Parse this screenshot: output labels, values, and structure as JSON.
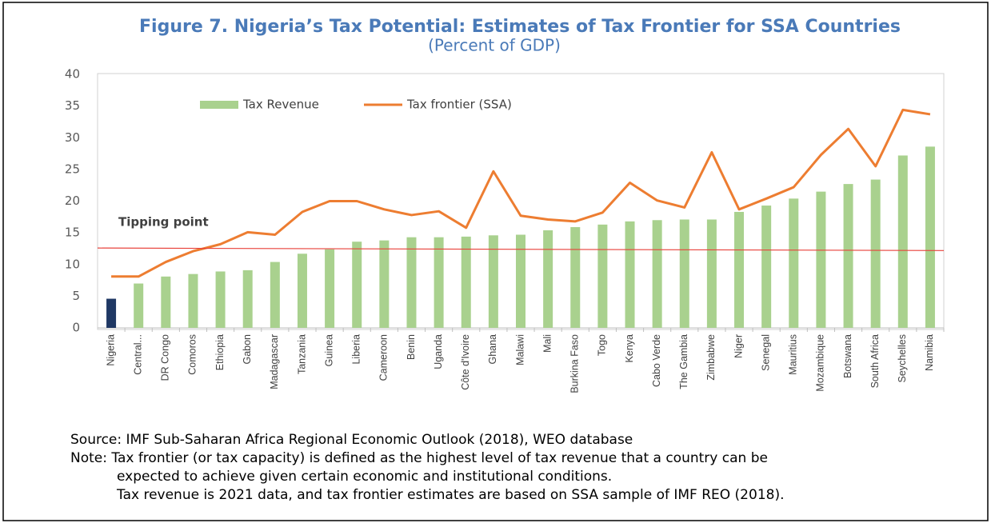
{
  "chart_data": {
    "type": "bar",
    "title": "Figure 7. Nigeria’s Tax Potential: Estimates of Tax Frontier for SSA Countries",
    "subtitle": "(Percent of GDP)",
    "categories": [
      "Nigeria",
      "Central...",
      "DR Congo",
      "Comoros",
      "Ethiopia",
      "Gabon",
      "Madagascar",
      "Tanzania",
      "Guinea",
      "Liberia",
      "Cameroon",
      "Benin",
      "Uganda",
      "Côte d'Ivoire",
      "Ghana",
      "Malawi",
      "Mali",
      "Burkina Faso",
      "Togo",
      "Kenya",
      "Cabo Verde",
      "The Gambia",
      "Zimbabwe",
      "Niger",
      "Senegal",
      "Mauritius",
      "Mozambique",
      "Botswana",
      "South Africa",
      "Seychelles",
      "Namibia"
    ],
    "series": [
      {
        "name": "Tax Revenue",
        "type": "bar",
        "color": "#a9d18e",
        "colors": [
          "#1f3864",
          "#a9d18e",
          "#a9d18e",
          "#a9d18e",
          "#a9d18e",
          "#a9d18e",
          "#a9d18e",
          "#a9d18e",
          "#a9d18e",
          "#a9d18e",
          "#a9d18e",
          "#a9d18e",
          "#a9d18e",
          "#a9d18e",
          "#a9d18e",
          "#a9d18e",
          "#a9d18e",
          "#a9d18e",
          "#a9d18e",
          "#a9d18e",
          "#a9d18e",
          "#a9d18e",
          "#a9d18e",
          "#a9d18e",
          "#a9d18e",
          "#a9d18e",
          "#a9d18e",
          "#a9d18e",
          "#a9d18e",
          "#a9d18e",
          "#a9d18e"
        ],
        "values": [
          4.6,
          7.0,
          8.1,
          8.5,
          8.9,
          9.1,
          10.4,
          11.7,
          12.4,
          13.6,
          13.8,
          14.3,
          14.3,
          14.4,
          14.6,
          14.7,
          15.4,
          15.9,
          16.3,
          16.8,
          17.0,
          17.1,
          17.1,
          18.3,
          19.3,
          20.4,
          21.5,
          22.7,
          23.4,
          27.2,
          28.6
        ]
      },
      {
        "name": "Tax frontier (SSA)",
        "type": "line",
        "color": "#ed7d31",
        "values": [
          8.1,
          8.1,
          10.4,
          12.1,
          13.2,
          15.1,
          14.7,
          18.3,
          20.0,
          20.0,
          18.7,
          17.8,
          18.4,
          15.8,
          24.7,
          17.7,
          17.1,
          16.8,
          18.2,
          22.9,
          20.1,
          19.0,
          27.7,
          18.7,
          20.4,
          22.2,
          27.3,
          31.4,
          25.5,
          34.4,
          33.7
        ]
      }
    ],
    "tipping_line": {
      "label": "Tipping point",
      "values": [
        12.6,
        12.2
      ],
      "color": "#e8413a"
    },
    "ylim": [
      0,
      40
    ],
    "yticks": [
      0,
      5,
      10,
      15,
      20,
      25,
      30,
      35,
      40
    ],
    "grid": false,
    "legend": "top",
    "source": "Source: IMF Sub-Saharan Africa Regional Economic Outlook (2018), WEO database",
    "note": [
      "Note: Tax frontier (or tax capacity) is defined as the highest level of tax revenue that a country can be",
      "expected to achieve given certain economic and institutional conditions.",
      "Tax revenue is 2021 data, and tax frontier estimates are based on SSA sample of IMF REO (2018)."
    ]
  }
}
